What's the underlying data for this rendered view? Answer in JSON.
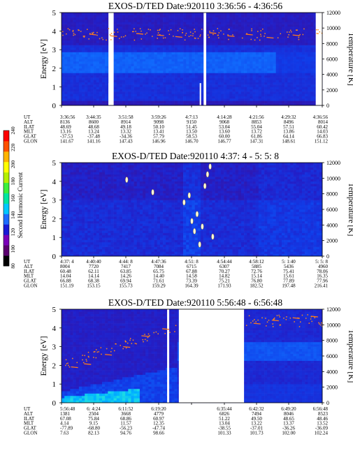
{
  "chart_data": [
    {
      "type": "heatmap",
      "title": "EXOS-D/TED   Date:920110  3:36:56 - 4:36:56",
      "ylabel": "Energy [eV]",
      "y2label": "Temperature [K]",
      "ylim": [
        0,
        5
      ],
      "y_ticks": [
        "0",
        "1",
        "2",
        "3",
        "4",
        "5"
      ],
      "y2lim": [
        0,
        12000
      ],
      "y2_ticks": [
        "0",
        "2000",
        "4000",
        "6000",
        "8000",
        "10000",
        "12000"
      ],
      "description_bands": [
        {
          "e_low": 1.8,
          "e_high": 2.9,
          "intensity": 0.45,
          "t_end": 0.82
        },
        {
          "e_low": 0.2,
          "e_high": 3.3,
          "intensity": 0.25,
          "t_end": 1.0
        }
      ],
      "data_gaps": [
        [
          0.18,
          0.2
        ],
        [
          0.545,
          0.555
        ],
        [
          0.975,
          1.0
        ]
      ],
      "temp_points": [
        {
          "t": 0.12,
          "T": 9200
        },
        {
          "t": 0.2,
          "T": 9000
        },
        {
          "t": 0.3,
          "T": 9300
        },
        {
          "t": 0.38,
          "T": 9100
        },
        {
          "t": 0.45,
          "T": 8900
        },
        {
          "t": 0.58,
          "T": 9400
        },
        {
          "t": 0.65,
          "T": 9000
        },
        {
          "t": 0.72,
          "T": 9200
        },
        {
          "t": 0.8,
          "T": 8800
        },
        {
          "t": 0.9,
          "T": 9100
        }
      ],
      "table": {
        "row_labels": [
          "UT",
          "ALT",
          "ILAT",
          "MLT",
          "GLAT",
          "GLON"
        ],
        "columns": [
          [
            "3:36:56",
            "8136",
            "48.69",
            "13.16",
            "-37.53",
            "141.67"
          ],
          [
            "3:44:35",
            "8600",
            "48.68",
            "13.24",
            "-37.48",
            "141.16"
          ],
          [
            "3:51:58",
            "8914",
            "49.18",
            "13.32",
            "-34.36",
            "147.43"
          ],
          [
            "3:59:26",
            "9098",
            "50.10",
            "13.41",
            "57.79",
            "146.96"
          ],
          [
            "4:7:13",
            "9150",
            "51.45",
            "13.50",
            "58.53",
            "146.70"
          ],
          [
            "4:14:28",
            "9068",
            "53.04",
            "13.60",
            "60.00",
            "146.77"
          ],
          [
            "4:21:56",
            "8853",
            "55.04",
            "13.72",
            "61.86",
            "147.31"
          ],
          [
            "4:29:32",
            "8496",
            "57.51",
            "13.86",
            "64.14",
            "148.61"
          ],
          [
            "4:36:56",
            "8014",
            "60.42",
            "14.03",
            "66.83",
            "151.12"
          ]
        ]
      }
    },
    {
      "type": "heatmap",
      "title": "EXOS-D/TED   Date:920110  4:37: 4 - 5: 5: 8",
      "ylabel": "Energy [eV]",
      "y2label": "Temperature [K]",
      "ylim": [
        0,
        5
      ],
      "y_ticks": [
        "0",
        "1",
        "2",
        "3",
        "4",
        "5"
      ],
      "y2lim": [
        0,
        12000
      ],
      "y2_ticks": [
        "0",
        "2000",
        "4000",
        "6000",
        "8000",
        "10000",
        "12000"
      ],
      "colorbar": {
        "label": "Second Harmonic Current",
        "ticks": [
          "80",
          "100",
          "120",
          "140",
          "160",
          "180",
          "200",
          "220",
          "240"
        ],
        "colors": [
          "#000000",
          "#5a006e",
          "#7a00b8",
          "#1a1ad6",
          "#1e6cff",
          "#00c8ff",
          "#00e6a0",
          "#3cf03c",
          "#b4f000",
          "#ffff00",
          "#ffb400",
          "#ff5000",
          "#ff0000"
        ]
      },
      "temp_points": [
        {
          "t": 0.25,
          "T": 9800
        },
        {
          "t": 0.35,
          "T": 8200
        },
        {
          "t": 0.47,
          "T": 6900
        },
        {
          "t": 0.49,
          "T": 7800
        },
        {
          "t": 0.5,
          "T": 4500
        },
        {
          "t": 0.51,
          "T": 3200
        },
        {
          "t": 0.52,
          "T": 5400
        },
        {
          "t": 0.53,
          "T": 1500
        },
        {
          "t": 0.54,
          "T": 3800
        },
        {
          "t": 0.55,
          "T": 9000
        },
        {
          "t": 0.56,
          "T": 10500
        },
        {
          "t": 0.57,
          "T": 11500
        },
        {
          "t": 0.58,
          "T": 2500
        }
      ],
      "table": {
        "row_labels": [
          "UT",
          "ALT",
          "ILAT",
          "MLT",
          "GLAT",
          "GLON"
        ],
        "columns": [
          [
            "4:37: 4",
            "8004",
            "60.48",
            "14.04",
            "66.88",
            "151.19"
          ],
          [
            "4:40:40",
            "7720",
            "62.11",
            "14.14",
            "68.38",
            "153.15"
          ],
          [
            "4:44: 8",
            "7417",
            "63.85",
            "14.26",
            "69.94",
            "155.73"
          ],
          [
            "4:47:36",
            "7084",
            "65.75",
            "14.40",
            "71.61",
            "159.29"
          ],
          [
            "4:51: 8",
            "6715",
            "67.88",
            "14.58",
            "73.39",
            "164.39"
          ],
          [
            "4:54:44",
            "6307",
            "70.27",
            "14.82",
            "75.21",
            "171.93"
          ],
          [
            "4:58:12",
            "5885",
            "72.76",
            "15.14",
            "76.80",
            "182.52"
          ],
          [
            "5: 1:40",
            "5436",
            "75.41",
            "15.61",
            "77.89",
            "197.48"
          ],
          [
            "5: 5: 8",
            "4960",
            "78.06",
            "16.35",
            "77.96",
            "216.41"
          ]
        ]
      }
    },
    {
      "type": "heatmap",
      "title": "EXOS-D/TED   Date:920110  5:56:48 - 6:56:48",
      "ylabel": "Energy [eV]",
      "y2label": "Temperature [K]",
      "ylim": [
        0,
        5
      ],
      "y_ticks": [
        "0",
        "1",
        "2",
        "3",
        "4",
        "5"
      ],
      "y2lim": [
        0,
        12000
      ],
      "y2_ticks": [
        "0",
        "2000",
        "4000",
        "6000",
        "8000",
        "10000",
        "12000"
      ],
      "data_gaps": [
        [
          0.45,
          0.7
        ]
      ],
      "temp_points": [
        {
          "t": 0.05,
          "T": 4600
        },
        {
          "t": 0.1,
          "T": 5000
        },
        {
          "t": 0.18,
          "T": 6200
        },
        {
          "t": 0.25,
          "T": 7200
        },
        {
          "t": 0.32,
          "T": 8600
        },
        {
          "t": 0.4,
          "T": 9500
        },
        {
          "t": 0.75,
          "T": 10200
        },
        {
          "t": 0.82,
          "T": 10600
        },
        {
          "t": 0.9,
          "T": 10900
        },
        {
          "t": 0.97,
          "T": 11100
        }
      ],
      "table": {
        "row_labels": [
          "UT",
          "ALT",
          "ILAT",
          "MLT",
          "GLAT",
          "GLON"
        ],
        "columns": [
          [
            "5:56:48",
            "1381",
            "67.08",
            "4.14",
            "-77.89",
            "7.63"
          ],
          [
            "6: 4:24",
            "2504",
            "75.84",
            "9.15",
            "-68.80",
            "82.13"
          ],
          [
            "6:11:52",
            "3668",
            "68.86",
            "11.57",
            "-56.23",
            "94.76"
          ],
          [
            "6:19:20",
            "4779",
            "60.97",
            "12.35",
            "-47.74",
            "98.66"
          ],
          [
            "",
            "",
            "",
            "",
            "",
            ""
          ],
          [
            "6:35:44",
            "6826",
            "51.22",
            "13.04",
            "-38.55",
            "101.33"
          ],
          [
            "6:42:32",
            "7494",
            "49.50",
            "13.22",
            "-37.01",
            "101.73"
          ],
          [
            "6:49:20",
            "8046",
            "48.65",
            "13.37",
            "-36.26",
            "102.00"
          ],
          [
            "6:56:48",
            "8523",
            "48.46",
            "13.52",
            "-36.09",
            "102.24"
          ]
        ]
      }
    }
  ]
}
